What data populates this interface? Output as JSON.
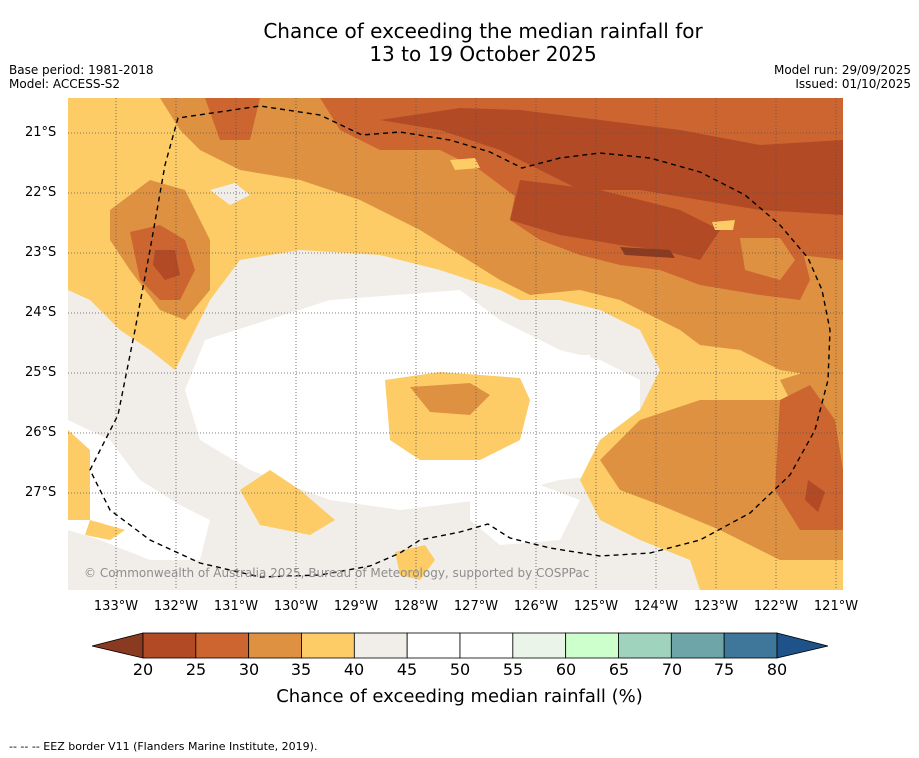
{
  "header": {
    "title_line1": "Chance of exceeding the median rainfall for",
    "title_line2": "13 to 19 October 2025",
    "base_period": "Base period: 1981-2018",
    "model": "Model: ACCESS-S2",
    "model_run": "Model run: 29/09/2025",
    "issued": "Issued: 01/10/2025"
  },
  "map": {
    "lat_labels": [
      "21°S",
      "22°S",
      "23°S",
      "24°S",
      "25°S",
      "26°S",
      "27°S"
    ],
    "lon_labels": [
      "133°W",
      "132°W",
      "131°W",
      "130°W",
      "129°W",
      "128°W",
      "127°W",
      "126°W",
      "125°W",
      "124°W",
      "123°W",
      "122°W",
      "121°W"
    ],
    "copyright": "© Commonwealth of Australia 2025, Bureau of Meteorology, supported by COSPPac"
  },
  "colorbar": {
    "ticks": [
      "20",
      "25",
      "30",
      "35",
      "40",
      "45",
      "50",
      "55",
      "60",
      "65",
      "70",
      "75",
      "80"
    ],
    "colors": [
      "#b14a25",
      "#cd6530",
      "#de9241",
      "#fdcc66",
      "#f1eee9",
      "#ffffff",
      "#ffffff",
      "#eaf4e8",
      "#ccffcc",
      "#9fd3bd",
      "#6ea5a8",
      "#3f779a"
    ],
    "under_color": "#8a3a20",
    "over_color": "#1f5288",
    "label": "Chance of exceeding median rainfall (%)"
  },
  "legend": {
    "footnote": "--  --  -- EEZ border V11 (Flanders Marine Institute, 2019)."
  }
}
